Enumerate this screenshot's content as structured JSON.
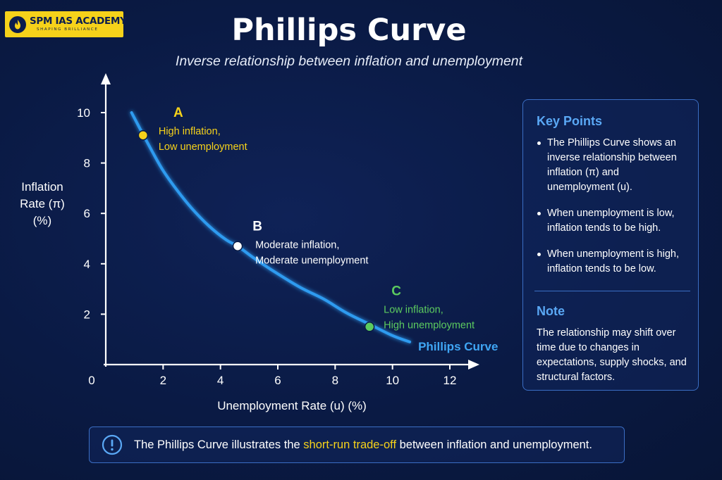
{
  "logo": {
    "name": "SPM IAS ACADEMY",
    "tagline": "SHAPING BRILLIANCE",
    "emblem_icon": "flame-emblem-icon"
  },
  "header": {
    "title": "Phillips Curve",
    "subtitle": "Inverse relationship between inflation and unemployment"
  },
  "chart_data": {
    "type": "line",
    "xlabel": "Unemployment Rate (u) (%)",
    "ylabel_lines": [
      "Inflation",
      "Rate (π)",
      "(%)"
    ],
    "xlim": [
      0,
      12
    ],
    "ylim": [
      0,
      10
    ],
    "x_ticks": [
      2,
      4,
      6,
      8,
      10,
      12
    ],
    "y_ticks": [
      2,
      4,
      6,
      8,
      10
    ],
    "origin_label": "0",
    "grid": false,
    "series": [
      {
        "name": "Phillips Curve",
        "color": "#2e9bf0",
        "x": [
          0.9,
          1.2,
          1.6,
          2.0,
          2.5,
          3.0,
          3.6,
          4.2,
          4.6,
          5.2,
          6.0,
          6.8,
          7.6,
          8.4,
          9.2,
          10.0,
          10.6
        ],
        "y": [
          10.0,
          9.35,
          8.5,
          7.7,
          6.9,
          6.2,
          5.5,
          4.95,
          4.7,
          4.2,
          3.6,
          3.05,
          2.6,
          2.05,
          1.6,
          1.15,
          0.9
        ]
      }
    ],
    "points": [
      {
        "label": "A",
        "x": 1.3,
        "y": 9.1,
        "color": "#f6d21a",
        "text": [
          "High inflation,",
          "Low unemployment"
        ]
      },
      {
        "label": "B",
        "x": 4.6,
        "y": 4.7,
        "color": "#ffffff",
        "text": [
          "Moderate inflation,",
          "Moderate unemployment"
        ]
      },
      {
        "label": "C",
        "x": 9.2,
        "y": 1.5,
        "color": "#5ccb5f",
        "text": [
          "Low inflation,",
          "High unemployment"
        ]
      }
    ]
  },
  "key_points": {
    "heading": "Key Points",
    "items": [
      "The Phillips Curve shows an inverse relationship between inflation (π) and unemployment (u).",
      "When unemployment is low, inflation tends to be high.",
      "When unemployment is high, inflation tends to be low."
    ]
  },
  "note": {
    "heading": "Note",
    "text": "The relationship may shift over time due to changes in expectations, supply shocks, and structural factors."
  },
  "banner": {
    "icon": "info-circle-icon",
    "text_before": "The Phillips Curve illustrates the ",
    "highlight": "short-run trade-off",
    "text_after": " between inflation and unemployment."
  },
  "colors": {
    "background": "#0a1a44",
    "accent_blue": "#2e9bf0",
    "highlight_yellow": "#f6d21a",
    "point_green": "#5ccb5f"
  }
}
